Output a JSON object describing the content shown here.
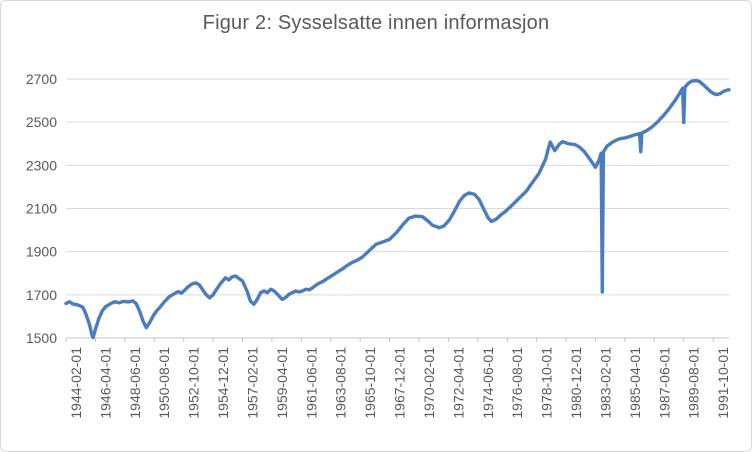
{
  "chart": {
    "title": "Figur 2: Sysselsatte innen informasjon"
  },
  "colors": {
    "line": "#4A7CBE",
    "grid": "#D9D9D9",
    "axis": "#C6C6C6",
    "text": "#595959",
    "frame_border": "#D9D9D9",
    "background": "#FFFFFF"
  },
  "chart_data": {
    "type": "line",
    "title": "Figur 2: Sysselsatte innen informasjon",
    "xlabel": "",
    "ylabel": "",
    "legend": "none",
    "grid": "horizontal",
    "x_unit": "month",
    "x_range": [
      "1944-02-01",
      "1992-12-01"
    ],
    "ylim": [
      1500,
      2700
    ],
    "y_ticks": [
      1500,
      1700,
      1900,
      2100,
      2300,
      2500,
      2700
    ],
    "x_tick_interval_months": 26,
    "x_tick_labels": [
      "1944-02-01",
      "1946-04-01",
      "1948-06-01",
      "1950-08-01",
      "1952-10-01",
      "1954-12-01",
      "1957-02-01",
      "1959-04-01",
      "1961-06-01",
      "1963-08-01",
      "1965-10-01",
      "1967-12-01",
      "1970-02-01",
      "1972-04-01",
      "1974-06-01",
      "1976-08-01",
      "1978-10-01",
      "1980-12-01",
      "1983-02-01",
      "1985-04-01",
      "1987-06-01",
      "1989-08-01",
      "1991-10-01"
    ],
    "series": [
      {
        "name": "Sysselsatte innen informasjon",
        "points": [
          [
            "1944-02",
            1660
          ],
          [
            "1944-05",
            1668
          ],
          [
            "1944-08",
            1658
          ],
          [
            "1944-11",
            1655
          ],
          [
            "1945-02",
            1650
          ],
          [
            "1945-05",
            1642
          ],
          [
            "1945-08",
            1605
          ],
          [
            "1945-11",
            1558
          ],
          [
            "1946-01",
            1512
          ],
          [
            "1946-02",
            1502
          ],
          [
            "1946-04",
            1540
          ],
          [
            "1946-07",
            1590
          ],
          [
            "1946-10",
            1625
          ],
          [
            "1947-01",
            1645
          ],
          [
            "1947-05",
            1658
          ],
          [
            "1947-09",
            1668
          ],
          [
            "1948-01",
            1663
          ],
          [
            "1948-05",
            1670
          ],
          [
            "1948-09",
            1667
          ],
          [
            "1949-01",
            1672
          ],
          [
            "1949-04",
            1660
          ],
          [
            "1949-07",
            1625
          ],
          [
            "1949-10",
            1580
          ],
          [
            "1950-01",
            1548
          ],
          [
            "1950-04",
            1572
          ],
          [
            "1950-07",
            1602
          ],
          [
            "1950-10",
            1625
          ],
          [
            "1951-01",
            1642
          ],
          [
            "1951-05",
            1668
          ],
          [
            "1951-09",
            1690
          ],
          [
            "1952-01",
            1703
          ],
          [
            "1952-05",
            1715
          ],
          [
            "1952-08",
            1708
          ],
          [
            "1952-11",
            1722
          ],
          [
            "1953-02",
            1738
          ],
          [
            "1953-06",
            1752
          ],
          [
            "1953-09",
            1755
          ],
          [
            "1953-12",
            1745
          ],
          [
            "1954-03",
            1722
          ],
          [
            "1954-06",
            1700
          ],
          [
            "1954-09",
            1686
          ],
          [
            "1954-12",
            1700
          ],
          [
            "1955-03",
            1725
          ],
          [
            "1955-07",
            1755
          ],
          [
            "1955-11",
            1779
          ],
          [
            "1956-02",
            1769
          ],
          [
            "1956-05",
            1784
          ],
          [
            "1956-08",
            1787
          ],
          [
            "1956-11",
            1775
          ],
          [
            "1957-02",
            1764
          ],
          [
            "1957-06",
            1718
          ],
          [
            "1957-09",
            1671
          ],
          [
            "1957-12",
            1656
          ],
          [
            "1958-03",
            1679
          ],
          [
            "1958-06",
            1710
          ],
          [
            "1958-09",
            1718
          ],
          [
            "1958-12",
            1710
          ],
          [
            "1959-03",
            1726
          ],
          [
            "1959-06",
            1718
          ],
          [
            "1959-09",
            1702
          ],
          [
            "1960-01",
            1679
          ],
          [
            "1960-04",
            1687
          ],
          [
            "1960-07",
            1702
          ],
          [
            "1960-10",
            1710
          ],
          [
            "1961-01",
            1718
          ],
          [
            "1961-04",
            1713
          ],
          [
            "1961-07",
            1718
          ],
          [
            "1961-10",
            1726
          ],
          [
            "1962-01",
            1723
          ],
          [
            "1962-04",
            1733
          ],
          [
            "1962-08",
            1749
          ],
          [
            "1963-01",
            1762
          ],
          [
            "1963-05",
            1776
          ],
          [
            "1963-10",
            1792
          ],
          [
            "1964-02",
            1806
          ],
          [
            "1964-07",
            1822
          ],
          [
            "1964-11",
            1838
          ],
          [
            "1965-03",
            1850
          ],
          [
            "1965-08",
            1862
          ],
          [
            "1965-12",
            1875
          ],
          [
            "1966-03",
            1890
          ],
          [
            "1966-08",
            1915
          ],
          [
            "1966-12",
            1934
          ],
          [
            "1967-06",
            1945
          ],
          [
            "1967-12",
            1957
          ],
          [
            "1968-06",
            1988
          ],
          [
            "1968-12",
            2027
          ],
          [
            "1969-05",
            2055
          ],
          [
            "1969-11",
            2065
          ],
          [
            "1970-05",
            2062
          ],
          [
            "1970-10",
            2042
          ],
          [
            "1971-02",
            2022
          ],
          [
            "1971-08",
            2011
          ],
          [
            "1971-12",
            2019
          ],
          [
            "1972-05",
            2048
          ],
          [
            "1972-09",
            2085
          ],
          [
            "1973-02",
            2135
          ],
          [
            "1973-06",
            2160
          ],
          [
            "1973-10",
            2172
          ],
          [
            "1974-03",
            2166
          ],
          [
            "1974-07",
            2143
          ],
          [
            "1974-12",
            2089
          ],
          [
            "1975-03",
            2058
          ],
          [
            "1975-06",
            2040
          ],
          [
            "1975-10",
            2050
          ],
          [
            "1976-03",
            2073
          ],
          [
            "1976-07",
            2089
          ],
          [
            "1977-01",
            2119
          ],
          [
            "1977-07",
            2150
          ],
          [
            "1978-01",
            2181
          ],
          [
            "1978-06",
            2219
          ],
          [
            "1978-12",
            2262
          ],
          [
            "1979-06",
            2330
          ],
          [
            "1979-08",
            2372
          ],
          [
            "1979-10",
            2408
          ],
          [
            "1980-02",
            2368
          ],
          [
            "1980-06",
            2398
          ],
          [
            "1980-09",
            2410
          ],
          [
            "1981-02",
            2400
          ],
          [
            "1981-08",
            2396
          ],
          [
            "1981-12",
            2384
          ],
          [
            "1982-04",
            2364
          ],
          [
            "1982-08",
            2336
          ],
          [
            "1982-12",
            2306
          ],
          [
            "1983-02",
            2291
          ],
          [
            "1983-05",
            2322
          ],
          [
            "1983-07",
            2356
          ],
          [
            "1983-08",
            1713
          ],
          [
            "1983-09",
            2362
          ],
          [
            "1983-12",
            2388
          ],
          [
            "1984-04",
            2404
          ],
          [
            "1984-08",
            2416
          ],
          [
            "1984-12",
            2424
          ],
          [
            "1985-04",
            2427
          ],
          [
            "1985-08",
            2433
          ],
          [
            "1986-01",
            2442
          ],
          [
            "1986-05",
            2447
          ],
          [
            "1986-06",
            2363
          ],
          [
            "1986-07",
            2450
          ],
          [
            "1986-11",
            2460
          ],
          [
            "1987-04",
            2478
          ],
          [
            "1987-09",
            2502
          ],
          [
            "1988-02",
            2530
          ],
          [
            "1988-07",
            2562
          ],
          [
            "1988-12",
            2598
          ],
          [
            "1989-04",
            2630
          ],
          [
            "1989-07",
            2657
          ],
          [
            "1989-08",
            2498
          ],
          [
            "1989-09",
            2662
          ],
          [
            "1989-12",
            2680
          ],
          [
            "1990-03",
            2690
          ],
          [
            "1990-07",
            2693
          ],
          [
            "1990-10",
            2688
          ],
          [
            "1991-01",
            2675
          ],
          [
            "1991-04",
            2660
          ],
          [
            "1991-07",
            2645
          ],
          [
            "1991-10",
            2633
          ],
          [
            "1992-01",
            2628
          ],
          [
            "1992-04",
            2632
          ],
          [
            "1992-07",
            2642
          ],
          [
            "1992-10",
            2648
          ],
          [
            "1992-12",
            2650
          ]
        ]
      }
    ]
  }
}
